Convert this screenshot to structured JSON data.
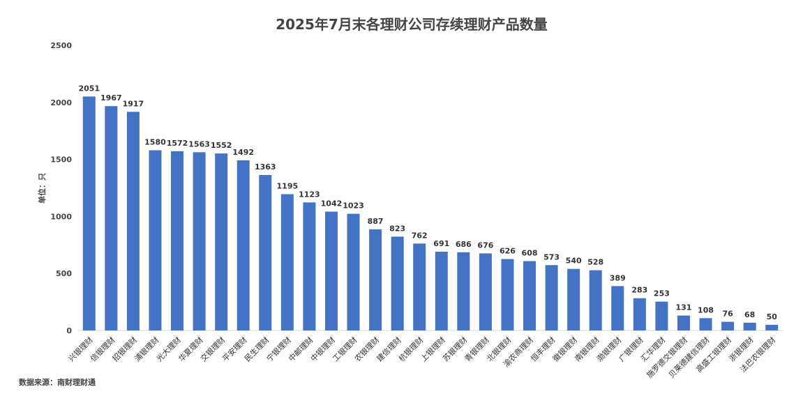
{
  "chart_data": {
    "type": "bar",
    "title": "2025年7月末各理财公司存续理财产品数量",
    "ylabel": "单位：只",
    "xlabel": "",
    "ylim": [
      0,
      2500
    ],
    "yticks": [
      "0",
      "500",
      "1000",
      "1500",
      "2000",
      "2500"
    ],
    "grid": false,
    "bar_color": "#4472C4",
    "categories": [
      "兴银理财",
      "信银理财",
      "招银理财",
      "浦银理财",
      "光大理财",
      "华夏理财",
      "交银理财",
      "平安理财",
      "民生理财",
      "宁银理财",
      "中邮理财",
      "中银理财",
      "工银理财",
      "农银理财",
      "建信理财",
      "杭银理财",
      "上银理财",
      "苏银理财",
      "青银理财",
      "北银理财",
      "渝农商理财",
      "恒丰理财",
      "徽银理财",
      "南银理财",
      "渤银理财",
      "广银理财",
      "汇华理财",
      "施罗德交银理财",
      "贝莱德建信理财",
      "高盛工银理财",
      "浙银理财",
      "法巴农银理财"
    ],
    "values": [
      2051,
      1967,
      1917,
      1580,
      1572,
      1563,
      1552,
      1492,
      1363,
      1195,
      1123,
      1042,
      1023,
      887,
      823,
      762,
      691,
      686,
      676,
      626,
      608,
      573,
      540,
      528,
      389,
      283,
      253,
      131,
      108,
      76,
      68,
      50
    ],
    "value_labels": [
      "2051",
      "1967",
      "1917",
      "1580",
      "1572",
      "1563",
      "1552",
      "1492",
      "1363",
      "1195",
      "1123",
      "1042",
      "1023",
      "887",
      "823",
      "762",
      "691",
      "686",
      "676",
      "626",
      "608",
      "573",
      "540",
      "528",
      "389",
      "283",
      "253",
      "131",
      "108",
      "76",
      "68",
      "50"
    ]
  },
  "source": "数据来源：南财理财通"
}
